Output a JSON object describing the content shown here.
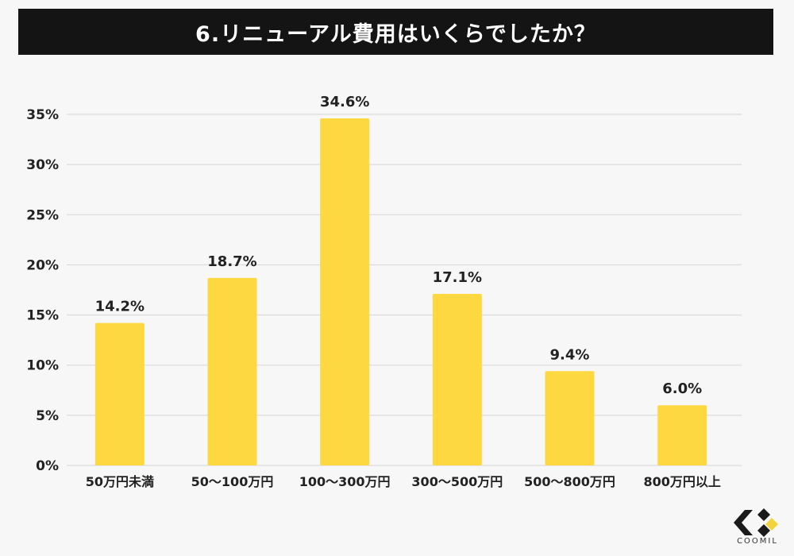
{
  "title": "6.リニューアル費用はいくらでしたか？",
  "brand": {
    "name": "COOMIL",
    "accent": "#f2d33c"
  },
  "colors": {
    "bar": "#fdd840",
    "title_bg": "#141414",
    "title_fg": "#ffffff",
    "grid": "#d6d6d6"
  },
  "chart_data": {
    "type": "bar",
    "title": "6.リニューアル費用はいくらでしたか？",
    "categories": [
      "50万円未満",
      "50〜100万円",
      "100〜300万円",
      "300〜500万円",
      "500〜800万円",
      "800万円以上"
    ],
    "values": [
      14.2,
      18.7,
      34.6,
      17.1,
      9.4,
      6.0
    ],
    "value_labels": [
      "14.2%",
      "18.7%",
      "34.6%",
      "17.1%",
      "9.4%",
      "6.0%"
    ],
    "ylim": [
      0,
      35
    ],
    "yticks": [
      0,
      5,
      10,
      15,
      20,
      25,
      30,
      35
    ],
    "ytick_labels": [
      "0%",
      "5%",
      "10%",
      "15%",
      "20%",
      "25%",
      "30%",
      "35%"
    ],
    "grid": true,
    "legend": "none"
  }
}
